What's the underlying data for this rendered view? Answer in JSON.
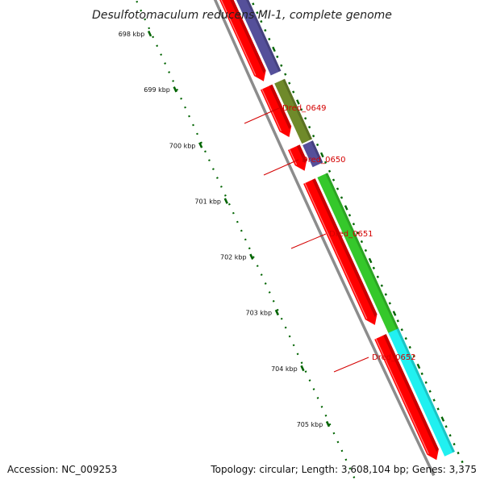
{
  "title": "Desulfotomaculum reducens MI-1, complete genome",
  "accession": "Accession: NC_009253",
  "summary": "Topology: circular; Length: 3,608,104 bp; Genes: 3,375",
  "colors": {
    "cds": "#ff0000",
    "backbone": "#8c8c8c",
    "ticks": "#006400",
    "callout": "#d40000",
    "cog_purple": "#55509a",
    "cog_olive": "#6f8a2a",
    "cog_green": "#35c82b",
    "cog_cyan": "#21f0f0"
  },
  "ticks": [
    {
      "label": "698 kbp"
    },
    {
      "label": "699 kbp"
    },
    {
      "label": "700 kbp"
    },
    {
      "label": "701 kbp"
    },
    {
      "label": "702 kbp"
    },
    {
      "label": "703 kbp"
    },
    {
      "label": "704 kbp"
    },
    {
      "label": "705 kbp"
    }
  ],
  "genes": [
    {
      "label": "Dred_0649"
    },
    {
      "label": "Dred_0650"
    },
    {
      "label": "Dred_0651"
    },
    {
      "label": "Dred_0652"
    }
  ]
}
